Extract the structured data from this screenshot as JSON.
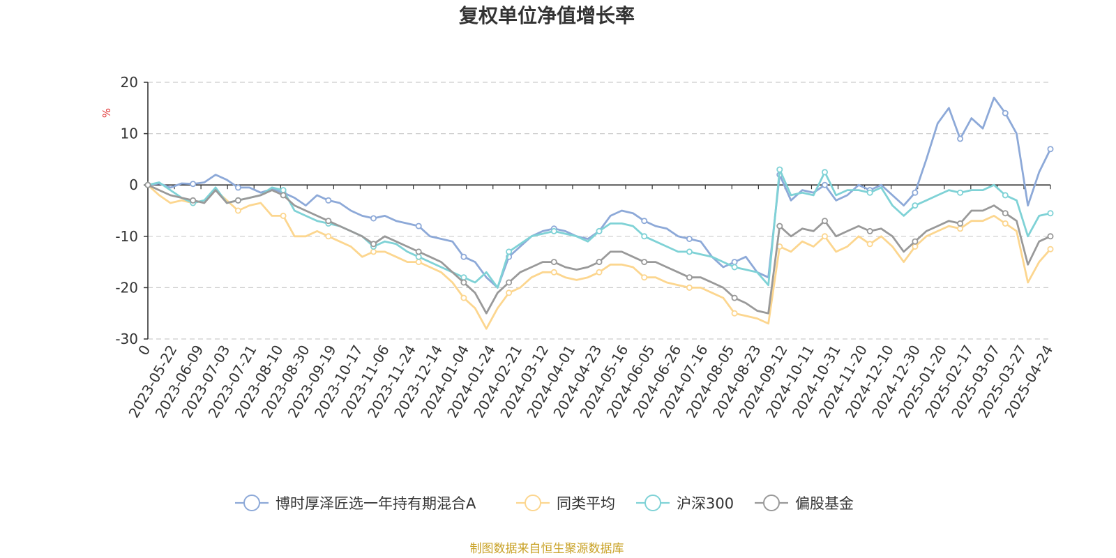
{
  "chart_data": {
    "type": "line",
    "title": "复权单位净值增长率",
    "ylabel": "%",
    "ylim": [
      -30,
      20
    ],
    "yticks": [
      -30,
      -20,
      -10,
      0,
      10,
      20
    ],
    "grid": true,
    "legend_position": "bottom",
    "source_note": "制图数据来自恒生聚源数据库",
    "x_tick_labels": [
      "0",
      "2023-05-22",
      "2023-06-09",
      "2023-07-03",
      "2023-07-21",
      "2023-08-10",
      "2023-08-30",
      "2023-09-19",
      "2023-10-17",
      "2023-11-06",
      "2023-11-24",
      "2023-12-14",
      "2024-01-04",
      "2024-01-24",
      "2024-02-21",
      "2024-03-12",
      "2024-04-01",
      "2024-04-23",
      "2024-05-16",
      "2024-06-05",
      "2024-06-26",
      "2024-07-16",
      "2024-08-05",
      "2024-08-23",
      "2024-09-12",
      "2024-10-11",
      "2024-10-31",
      "2024-11-20",
      "2024-12-10",
      "2024-12-30",
      "2025-01-20",
      "2025-02-17",
      "2025-03-07",
      "2025-03-27",
      "2025-04-24"
    ],
    "series": [
      {
        "name": "博时厚泽匠选一年持有期混合A",
        "color": "#8da9d8",
        "values": [
          0,
          0.3,
          -0.5,
          0.3,
          0.2,
          0.5,
          2.0,
          1.0,
          -0.5,
          -0.5,
          -1.5,
          -0.8,
          -1.5,
          -2.5,
          -4,
          -2,
          -3,
          -3.5,
          -5,
          -6,
          -6.5,
          -6,
          -7,
          -7.5,
          -8,
          -10,
          -10.5,
          -11,
          -14,
          -15,
          -18,
          -20,
          -14,
          -12,
          -10,
          -9,
          -8.5,
          -9,
          -10,
          -10.5,
          -9,
          -6,
          -5,
          -5.5,
          -7,
          -8,
          -8.5,
          -10,
          -10.5,
          -11,
          -14,
          -16,
          -15,
          -14,
          -17,
          -18,
          2,
          -3,
          -1,
          -1.5,
          0,
          -3,
          -2,
          0,
          -1,
          0,
          -2,
          -4,
          -1.5,
          5,
          12,
          15,
          9,
          13,
          11,
          17,
          14,
          10,
          -4,
          2.5,
          7
        ]
      },
      {
        "name": "同类平均",
        "color": "#fcd68f",
        "values": [
          0,
          -2,
          -3.5,
          -3,
          -3.5,
          -3,
          -1,
          -3,
          -5,
          -4,
          -3.5,
          -6,
          -6,
          -10,
          -10,
          -9,
          -10,
          -11,
          -12,
          -14,
          -13,
          -13,
          -14,
          -15,
          -15,
          -16,
          -17,
          -19,
          -22,
          -24,
          -28,
          -24,
          -21,
          -20,
          -18,
          -17,
          -17,
          -18,
          -18.5,
          -18,
          -17,
          -15.5,
          -15.5,
          -16,
          -18,
          -18,
          -19,
          -19.5,
          -20,
          -20,
          -21,
          -22,
          -25,
          -25.5,
          -26,
          -27,
          -12,
          -13,
          -11,
          -12,
          -10,
          -13,
          -12,
          -10,
          -11.5,
          -10,
          -12,
          -15,
          -12,
          -10,
          -9,
          -8,
          -8.5,
          -7,
          -7,
          -6,
          -7.5,
          -9,
          -19,
          -15,
          -12.5
        ]
      },
      {
        "name": "沪深300",
        "color": "#7fd2d6",
        "values": [
          0,
          0.5,
          -1,
          -2.5,
          -3.5,
          -3,
          -0.5,
          -3.5,
          -3,
          -2.5,
          -2,
          -0.5,
          -1,
          -5,
          -6,
          -7,
          -7.5,
          -8,
          -9,
          -10,
          -12,
          -11,
          -11.5,
          -13,
          -14,
          -15,
          -16,
          -17,
          -18,
          -19,
          -17,
          -20,
          -13,
          -11.5,
          -10,
          -9.5,
          -9,
          -9.5,
          -10,
          -11,
          -9,
          -7.5,
          -7.5,
          -8,
          -10,
          -11,
          -12,
          -13,
          -13,
          -13.5,
          -14,
          -15,
          -16,
          -16.5,
          -17,
          -19.5,
          3,
          -2,
          -1.5,
          -2,
          2.5,
          -2,
          -1,
          -1,
          -1.5,
          -0.5,
          -4,
          -6,
          -4,
          -3,
          -2,
          -1,
          -1.5,
          -1,
          -1,
          0,
          -2,
          -3,
          -10,
          -6,
          -5.5
        ]
      },
      {
        "name": "偏股基金",
        "color": "#999999",
        "values": [
          0,
          -1,
          -2,
          -2.5,
          -3,
          -3.5,
          -1,
          -3.5,
          -3,
          -2.5,
          -2,
          -1,
          -2,
          -4,
          -5,
          -6,
          -7,
          -8,
          -9,
          -10,
          -11.5,
          -10,
          -11,
          -12,
          -13,
          -14,
          -15,
          -17,
          -19,
          -21,
          -25,
          -21,
          -19,
          -17,
          -16,
          -15,
          -15,
          -16,
          -16.5,
          -16,
          -15,
          -13,
          -13,
          -14,
          -15,
          -15,
          -16,
          -17,
          -18,
          -18,
          -19,
          -20,
          -22,
          -23,
          -24.5,
          -25,
          -8,
          -10,
          -8.5,
          -9,
          -7,
          -10,
          -9,
          -8,
          -9,
          -8.5,
          -10,
          -13,
          -11,
          -9,
          -8,
          -7,
          -7.5,
          -5,
          -5,
          -4,
          -5.5,
          -7,
          -15.5,
          -11,
          -10
        ]
      }
    ]
  }
}
